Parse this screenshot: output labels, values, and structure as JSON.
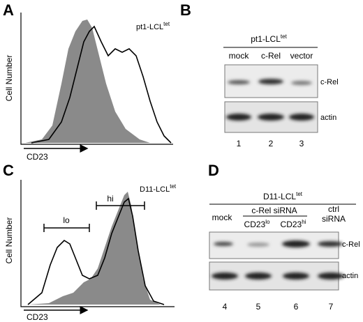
{
  "panel_a": {
    "letter": "A",
    "label": {
      "text": "pt1-LCL",
      "sup": "tet"
    },
    "y_label": "Cell Number",
    "x_label": "CD23"
  },
  "panel_b": {
    "letter": "B",
    "label": {
      "text": "pt1-LCL",
      "sup": "tet"
    },
    "lanes": [
      "mock",
      "c-Rel",
      "vector"
    ],
    "blots": [
      "c-Rel",
      "actin"
    ],
    "lane_numbers": [
      "1",
      "2",
      "3"
    ]
  },
  "panel_c": {
    "letter": "C",
    "label": {
      "text": "D11-LCL",
      "sup": "tet"
    },
    "gates": [
      "lo",
      "hi"
    ],
    "y_label": "Cell Number",
    "x_label": "CD23"
  },
  "panel_d": {
    "letter": "D",
    "label": {
      "text": "D11-LCL",
      "sup": "tet"
    },
    "lane_mock": "mock",
    "group": "c-Rel siRNA",
    "sub_lo": {
      "text": "CD23",
      "sup": "lo"
    },
    "sub_hi": {
      "text": "CD23",
      "sup": "hi"
    },
    "ctrl": [
      "ctrl",
      "siRNA"
    ],
    "blots": [
      "c-Rel",
      "actin"
    ],
    "lane_numbers": [
      "4",
      "5",
      "6",
      "7"
    ]
  }
}
